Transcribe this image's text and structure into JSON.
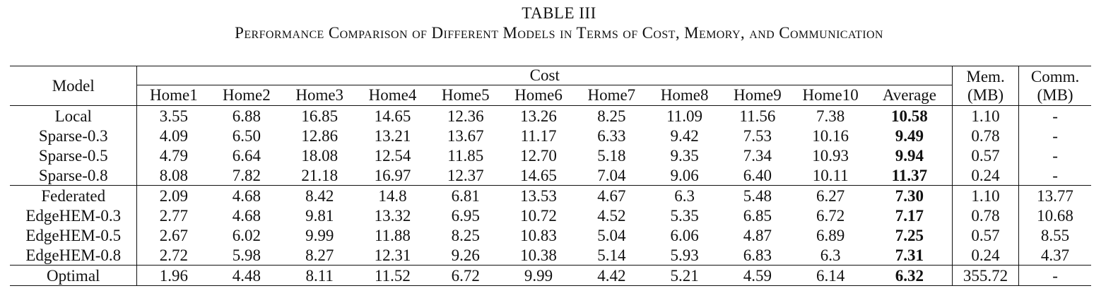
{
  "caption": {
    "number": "TABLE III",
    "title": "Performance Comparison of Different Models in Terms of Cost, Memory, and Communication"
  },
  "table": {
    "model_header": "Model",
    "cost_header": "Cost",
    "mem_header": [
      "Mem.",
      "(MB)"
    ],
    "comm_header": [
      "Comm.",
      "(MB)"
    ],
    "cost_columns": [
      "Home1",
      "Home2",
      "Home3",
      "Home4",
      "Home5",
      "Home6",
      "Home7",
      "Home8",
      "Home9",
      "Home10",
      "Average"
    ],
    "rows": [
      {
        "model": "Local",
        "costs": [
          "3.55",
          "6.88",
          "16.85",
          "14.65",
          "12.36",
          "13.26",
          "8.25",
          "11.09",
          "11.56",
          "7.38"
        ],
        "average": "10.58",
        "mem": "1.10",
        "comm": "-"
      },
      {
        "model": "Sparse-0.3",
        "costs": [
          "4.09",
          "6.50",
          "12.86",
          "13.21",
          "13.67",
          "11.17",
          "6.33",
          "9.42",
          "7.53",
          "10.16"
        ],
        "average": "9.49",
        "mem": "0.78",
        "comm": "-"
      },
      {
        "model": "Sparse-0.5",
        "costs": [
          "4.79",
          "6.64",
          "18.08",
          "12.54",
          "11.85",
          "12.70",
          "5.18",
          "9.35",
          "7.34",
          "10.93"
        ],
        "average": "9.94",
        "mem": "0.57",
        "comm": "-"
      },
      {
        "model": "Sparse-0.8",
        "costs": [
          "8.08",
          "7.82",
          "21.18",
          "16.97",
          "12.37",
          "14.65",
          "7.04",
          "9.06",
          "6.40",
          "10.11"
        ],
        "average": "11.37",
        "mem": "0.24",
        "comm": "-"
      },
      {
        "model": "Federated",
        "costs": [
          "2.09",
          "4.68",
          "8.42",
          "14.8",
          "6.81",
          "13.53",
          "4.67",
          "6.3",
          "5.48",
          "6.27"
        ],
        "average": "7.30",
        "mem": "1.10",
        "comm": "13.77"
      },
      {
        "model": "EdgeHEM-0.3",
        "costs": [
          "2.77",
          "4.68",
          "9.81",
          "13.32",
          "6.95",
          "10.72",
          "4.52",
          "5.35",
          "6.85",
          "6.72"
        ],
        "average": "7.17",
        "mem": "0.78",
        "comm": "10.68"
      },
      {
        "model": "EdgeHEM-0.5",
        "costs": [
          "2.67",
          "6.02",
          "9.99",
          "11.88",
          "8.25",
          "10.83",
          "5.04",
          "6.06",
          "4.87",
          "6.89"
        ],
        "average": "7.25",
        "mem": "0.57",
        "comm": "8.55"
      },
      {
        "model": "EdgeHEM-0.8",
        "costs": [
          "2.72",
          "5.98",
          "8.27",
          "12.31",
          "9.26",
          "10.38",
          "5.14",
          "5.93",
          "6.83",
          "6.3"
        ],
        "average": "7.31",
        "mem": "0.24",
        "comm": "4.37"
      },
      {
        "model": "Optimal",
        "costs": [
          "1.96",
          "4.48",
          "8.11",
          "11.52",
          "6.72",
          "9.99",
          "4.42",
          "5.21",
          "4.59",
          "6.14"
        ],
        "average": "6.32",
        "mem": "355.72",
        "comm": "-"
      }
    ]
  }
}
